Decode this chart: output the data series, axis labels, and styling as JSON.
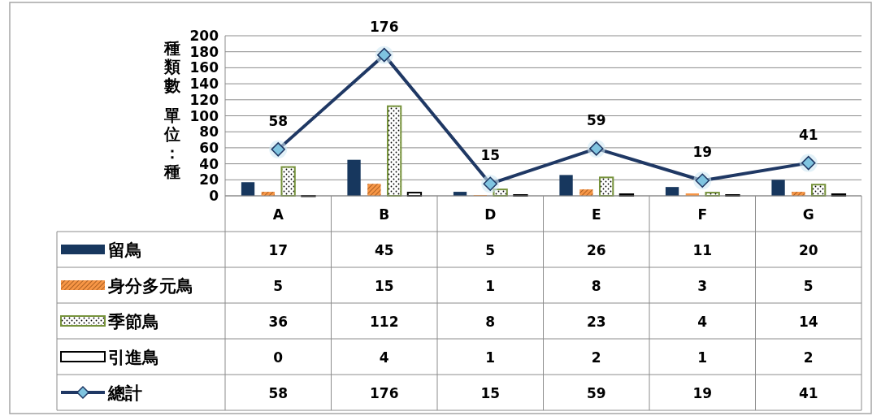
{
  "chart_data": {
    "type": "bar",
    "ylabel": "種類數單位：種",
    "annotations": [
      {
        "text": "58",
        "x": "A",
        "y": 58
      },
      {
        "text": "176",
        "x": "B",
        "y": 176
      },
      {
        "text": "15",
        "x": "D",
        "y": 15
      },
      {
        "text": "59",
        "x": "E",
        "y": 59
      },
      {
        "text": "19",
        "x": "F",
        "y": 19
      },
      {
        "text": "41",
        "x": "G",
        "y": 41
      }
    ],
    "categories": [
      "A",
      "B",
      "D",
      "E",
      "F",
      "G"
    ],
    "ylim": [
      0,
      200
    ],
    "yticks": [
      0,
      20,
      40,
      60,
      80,
      100,
      120,
      140,
      160,
      180,
      200
    ],
    "grid": "y",
    "legend": "bottom left",
    "data_labels": true,
    "marker": "diamond",
    "line_style": "solid",
    "series": [
      {
        "name": "留鳥",
        "type": "bar",
        "color": "#17375e",
        "values": [
          17,
          45,
          5,
          26,
          11,
          20
        ]
      },
      {
        "name": "身分多元鳥",
        "type": "bar",
        "color": "#f79646",
        "values": [
          5,
          15,
          1,
          8,
          3,
          5
        ]
      },
      {
        "name": "季節鳥",
        "type": "bar",
        "color": "#77933c",
        "values": [
          36,
          112,
          8,
          23,
          4,
          14
        ]
      },
      {
        "name": "引進鳥",
        "type": "bar",
        "color": "#000000",
        "values": [
          0,
          4,
          1,
          2,
          1,
          2
        ]
      },
      {
        "name": "總計",
        "type": "line",
        "color": "#1f3864",
        "values": [
          58,
          176,
          15,
          59,
          19,
          41
        ]
      }
    ]
  }
}
